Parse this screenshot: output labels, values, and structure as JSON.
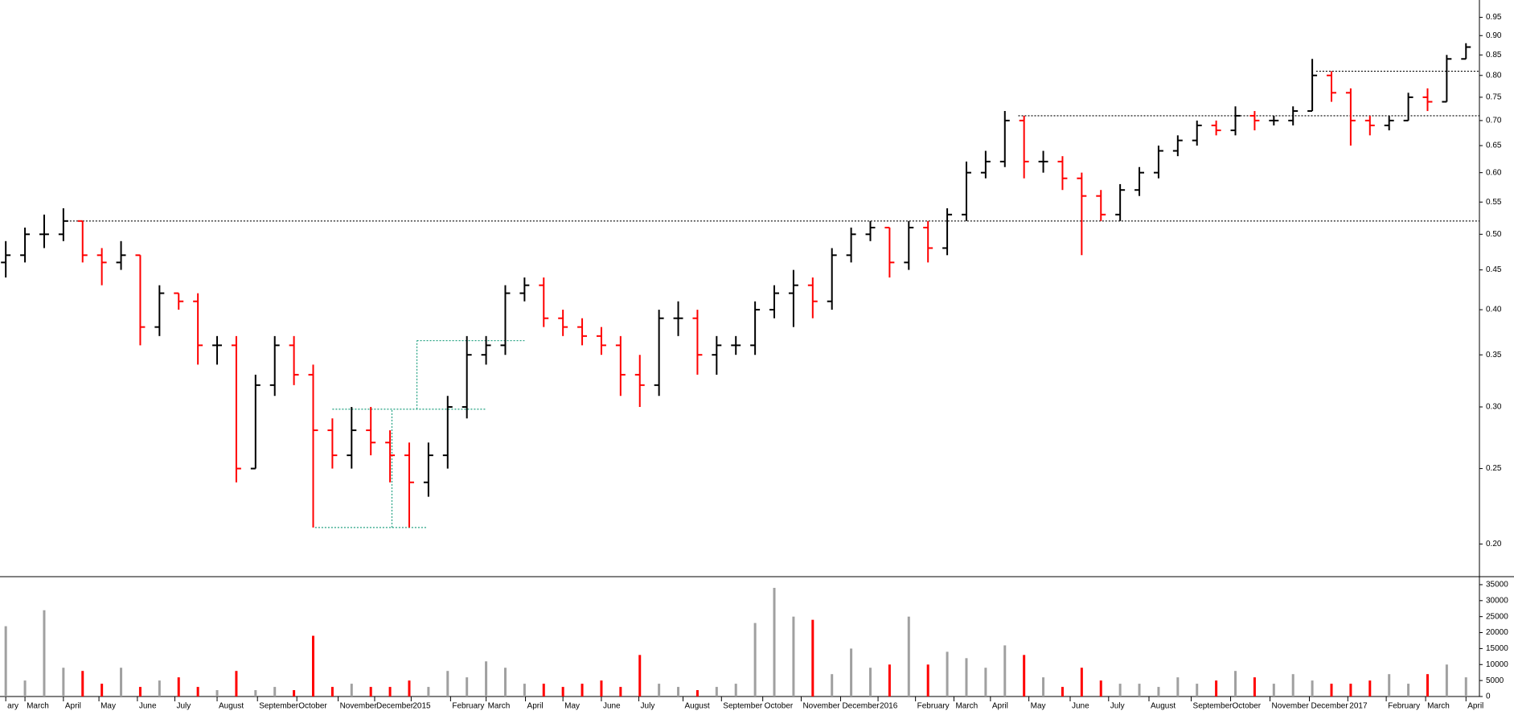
{
  "chart_data": {
    "type": "ohlc",
    "log_scale": true,
    "up_color": "#000000",
    "down_color": "#ff0000",
    "volume_up_color": "#a0a0a0",
    "volume_down_color": "#ff0000",
    "xlim": [
      -0.3,
      76.7
    ],
    "ylim": [
      0.182,
      1.0
    ],
    "yticks": [
      0.95,
      {
        "value": 0.9,
        "label": "0.90"
      },
      0.85,
      {
        "value": 0.8,
        "label": "0.80"
      },
      0.75,
      {
        "value": 0.7,
        "label": "0.70"
      },
      0.65,
      {
        "value": 0.6,
        "label": "0.60"
      },
      0.55,
      {
        "value": 0.5,
        "label": "0.50"
      },
      0.45,
      {
        "value": 0.4,
        "label": "0.40"
      },
      0.35,
      {
        "value": 0.3,
        "label": "0.30"
      },
      0.25,
      {
        "value": 0.2,
        "label": "0.20"
      }
    ],
    "vlim": [
      0,
      37000
    ],
    "vticks": [
      0,
      5000,
      10000,
      15000,
      20000,
      25000,
      30000,
      35000
    ],
    "xticks": [
      {
        "value": 0,
        "label": "ary"
      },
      {
        "value": 1.0,
        "label": "March"
      },
      {
        "value": 3.0,
        "label": "April"
      },
      {
        "value": 4.85,
        "label": "May"
      },
      {
        "value": 6.85,
        "label": "June"
      },
      {
        "value": 8.8,
        "label": "July"
      },
      {
        "value": 11.0,
        "label": "August"
      },
      {
        "value": 13.1,
        "label": "September"
      },
      {
        "value": 15.15,
        "label": "October"
      },
      {
        "value": 17.3,
        "label": "November"
      },
      {
        "value": 19.2,
        "label": "December"
      },
      {
        "value": 21.1,
        "label": "2015"
      },
      {
        "value": 23.15,
        "label": "February"
      },
      {
        "value": 25.0,
        "label": "March"
      },
      {
        "value": 27.05,
        "label": "April"
      },
      {
        "value": 29.0,
        "label": "May"
      },
      {
        "value": 31.0,
        "label": "June"
      },
      {
        "value": 32.95,
        "label": "July"
      },
      {
        "value": 35.25,
        "label": "August"
      },
      {
        "value": 37.25,
        "label": "September"
      },
      {
        "value": 39.4,
        "label": "October"
      },
      {
        "value": 41.4,
        "label": "November"
      },
      {
        "value": 43.45,
        "label": "December"
      },
      {
        "value": 45.4,
        "label": "2016"
      },
      {
        "value": 47.35,
        "label": "February"
      },
      {
        "value": 49.35,
        "label": "March"
      },
      {
        "value": 51.25,
        "label": "April"
      },
      {
        "value": 53.25,
        "label": "May"
      },
      {
        "value": 55.4,
        "label": "June"
      },
      {
        "value": 57.4,
        "label": "July"
      },
      {
        "value": 59.5,
        "label": "August"
      },
      {
        "value": 61.7,
        "label": "September"
      },
      {
        "value": 63.75,
        "label": "October"
      },
      {
        "value": 65.8,
        "label": "November"
      },
      {
        "value": 67.85,
        "label": "December"
      },
      {
        "value": 69.85,
        "label": "2017"
      },
      {
        "value": 71.85,
        "label": "February"
      },
      {
        "value": 73.9,
        "label": "March"
      },
      {
        "value": 76.0,
        "label": "April"
      }
    ],
    "open": [
      0.46,
      0.47,
      0.5,
      0.5,
      0.52,
      0.47,
      0.46,
      0.47,
      0.38,
      0.42,
      0.41,
      0.36,
      0.36,
      0.25,
      0.32,
      0.36,
      0.33,
      0.28,
      0.26,
      0.28,
      0.27,
      0.26,
      0.24,
      0.26,
      0.3,
      0.35,
      0.36,
      0.42,
      0.43,
      0.39,
      0.38,
      0.37,
      0.36,
      0.33,
      0.32,
      0.39,
      0.39,
      0.35,
      0.36,
      0.36,
      0.4,
      0.42,
      0.43,
      0.41,
      0.47,
      0.5,
      0.51,
      0.46,
      0.51,
      0.48,
      0.53,
      0.6,
      0.62,
      0.7,
      0.62,
      0.62,
      0.59,
      0.56,
      0.53,
      0.57,
      0.6,
      0.64,
      0.66,
      0.69,
      0.68,
      0.71,
      0.7,
      0.7,
      0.72,
      0.8,
      0.76,
      0.7,
      0.69,
      0.7,
      0.75,
      0.74,
      0.84
    ],
    "high": [
      0.49,
      0.51,
      0.53,
      0.54,
      0.52,
      0.48,
      0.49,
      0.47,
      0.43,
      0.42,
      0.42,
      0.37,
      0.37,
      0.33,
      0.37,
      0.37,
      0.34,
      0.29,
      0.3,
      0.3,
      0.28,
      0.27,
      0.27,
      0.31,
      0.37,
      0.37,
      0.43,
      0.44,
      0.44,
      0.4,
      0.39,
      0.38,
      0.37,
      0.35,
      0.4,
      0.41,
      0.4,
      0.37,
      0.37,
      0.41,
      0.43,
      0.45,
      0.44,
      0.48,
      0.51,
      0.52,
      0.51,
      0.52,
      0.52,
      0.54,
      0.62,
      0.64,
      0.72,
      0.71,
      0.64,
      0.63,
      0.6,
      0.57,
      0.58,
      0.61,
      0.65,
      0.67,
      0.7,
      0.7,
      0.73,
      0.72,
      0.71,
      0.73,
      0.84,
      0.81,
      0.77,
      0.71,
      0.71,
      0.76,
      0.77,
      0.85,
      0.88
    ],
    "low": [
      0.44,
      0.46,
      0.48,
      0.49,
      0.46,
      0.43,
      0.45,
      0.36,
      0.37,
      0.4,
      0.34,
      0.34,
      0.24,
      0.25,
      0.31,
      0.32,
      0.21,
      0.25,
      0.25,
      0.26,
      0.24,
      0.21,
      0.23,
      0.25,
      0.29,
      0.34,
      0.35,
      0.41,
      0.38,
      0.37,
      0.36,
      0.35,
      0.31,
      0.3,
      0.31,
      0.37,
      0.33,
      0.33,
      0.35,
      0.35,
      0.39,
      0.38,
      0.39,
      0.4,
      0.46,
      0.49,
      0.44,
      0.45,
      0.46,
      0.47,
      0.52,
      0.59,
      0.61,
      0.59,
      0.6,
      0.57,
      0.47,
      0.52,
      0.52,
      0.56,
      0.59,
      0.63,
      0.65,
      0.67,
      0.67,
      0.68,
      0.69,
      0.69,
      0.72,
      0.74,
      0.65,
      0.67,
      0.68,
      0.7,
      0.72,
      0.74,
      0.84
    ],
    "close": [
      0.47,
      0.5,
      0.5,
      0.52,
      0.47,
      0.46,
      0.47,
      0.38,
      0.42,
      0.41,
      0.36,
      0.36,
      0.25,
      0.32,
      0.36,
      0.33,
      0.28,
      0.26,
      0.28,
      0.27,
      0.26,
      0.24,
      0.26,
      0.3,
      0.35,
      0.36,
      0.42,
      0.43,
      0.39,
      0.38,
      0.37,
      0.36,
      0.33,
      0.32,
      0.39,
      0.39,
      0.35,
      0.36,
      0.36,
      0.4,
      0.42,
      0.43,
      0.41,
      0.47,
      0.5,
      0.51,
      0.46,
      0.51,
      0.48,
      0.53,
      0.6,
      0.62,
      0.7,
      0.62,
      0.62,
      0.59,
      0.56,
      0.53,
      0.57,
      0.6,
      0.64,
      0.66,
      0.69,
      0.68,
      0.71,
      0.7,
      0.7,
      0.72,
      0.8,
      0.76,
      0.7,
      0.69,
      0.7,
      0.75,
      0.74,
      0.84,
      0.87
    ],
    "volume": [
      22000,
      5000,
      27000,
      9000,
      8000,
      4000,
      9000,
      3000,
      5000,
      6000,
      3000,
      2000,
      8000,
      2000,
      3000,
      2000,
      19000,
      3000,
      4000,
      3000,
      3000,
      5000,
      3000,
      8000,
      6000,
      11000,
      9000,
      4000,
      4000,
      3000,
      4000,
      5000,
      3000,
      13000,
      4000,
      3000,
      2000,
      3000,
      4000,
      23000,
      34000,
      25000,
      24000,
      7000,
      15000,
      9000,
      10000,
      25000,
      10000,
      14000,
      12000,
      9000,
      16000,
      13000,
      6000,
      3000,
      9000,
      5000,
      4000,
      4000,
      3000,
      6000,
      4000,
      5000,
      8000,
      6000,
      4000,
      7000,
      5000,
      4000,
      4000,
      5000,
      7000,
      4000,
      7000,
      10000,
      6000
    ],
    "reference_lines": [
      {
        "x0": 3.0,
        "x1": 76.7,
        "y0": 0.52,
        "y1": 0.52,
        "color": "#000000"
      },
      {
        "x0": 52.7,
        "x1": 76.7,
        "y0": 0.71,
        "y1": 0.71,
        "color": "#000000"
      },
      {
        "x0": 68.2,
        "x1": 76.7,
        "y0": 0.81,
        "y1": 0.81,
        "color": "#000000"
      },
      {
        "x0": 16.1,
        "x1": 21.9,
        "y0": 0.21,
        "y1": 0.21,
        "color": "#20a080"
      },
      {
        "x0": 17.0,
        "x1": 25.0,
        "y0": 0.298,
        "y1": 0.298,
        "color": "#20a080"
      },
      {
        "x0": 21.4,
        "x1": 27.0,
        "y0": 0.365,
        "y1": 0.365,
        "color": "#20a080"
      },
      {
        "x0": 20.1,
        "x1": 20.1,
        "y0": 0.21,
        "y1": 0.298,
        "color": "#20a080"
      },
      {
        "x0": 21.4,
        "x1": 21.4,
        "y0": 0.298,
        "y1": 0.365,
        "color": "#20a080"
      }
    ]
  }
}
